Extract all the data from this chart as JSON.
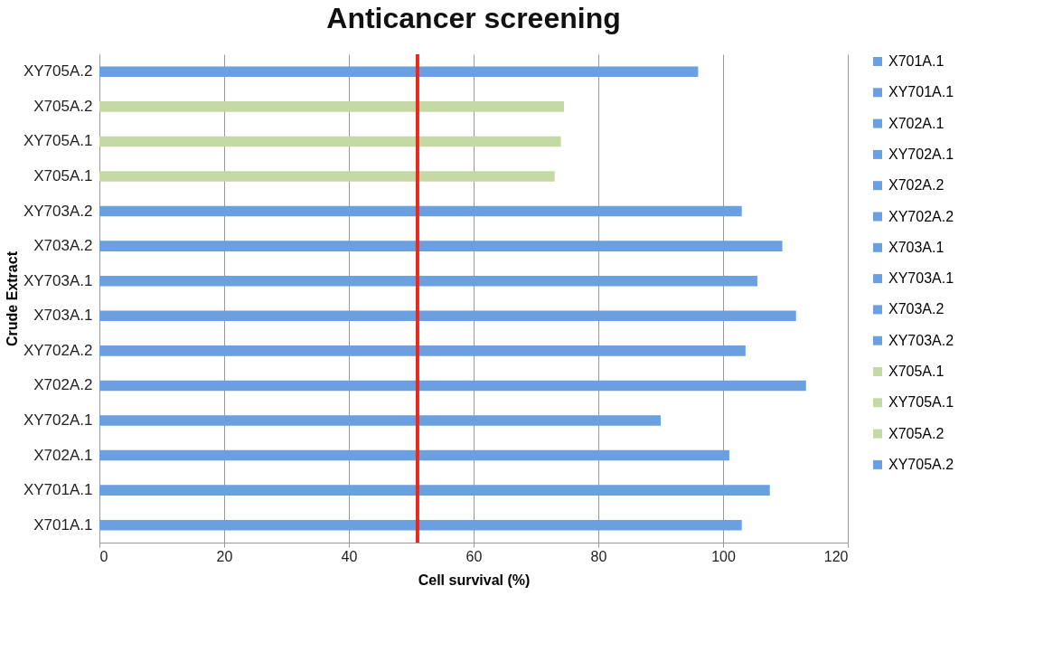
{
  "chart_data": {
    "type": "bar",
    "orientation": "horizontal",
    "title": "Anticancer screening",
    "xlabel": "Cell survival (%)",
    "ylabel": "Crude Extract",
    "categories": [
      "XY705A.2",
      "X705A.2",
      "XY705A.1",
      "X705A.1",
      "XY703A.2",
      "X703A.2",
      "XY703A.1",
      "X703A.1",
      "XY702A.2",
      "X702A.2",
      "XY702A.1",
      "X702A.1",
      "XY701A.1",
      "X701A.1"
    ],
    "series": [
      {
        "name": "X701A.1",
        "color": "#6a9fe0",
        "values": [
          null,
          null,
          null,
          null,
          null,
          null,
          null,
          null,
          null,
          null,
          null,
          null,
          null,
          103
        ]
      },
      {
        "name": "XY701A.1",
        "color": "#6a9fe0",
        "values": [
          null,
          null,
          null,
          null,
          null,
          null,
          null,
          null,
          null,
          null,
          null,
          null,
          107.5,
          null
        ]
      },
      {
        "name": "X702A.1",
        "color": "#6a9fe0",
        "values": [
          null,
          null,
          null,
          null,
          null,
          null,
          null,
          null,
          null,
          null,
          null,
          101,
          null,
          null
        ]
      },
      {
        "name": "XY702A.1",
        "color": "#6a9fe0",
        "values": [
          null,
          null,
          null,
          null,
          null,
          null,
          null,
          null,
          null,
          null,
          90,
          null,
          null,
          null
        ]
      },
      {
        "name": "X702A.2",
        "color": "#6a9fe0",
        "values": [
          null,
          null,
          null,
          null,
          null,
          null,
          null,
          null,
          null,
          113.3,
          null,
          null,
          null,
          null
        ]
      },
      {
        "name": "XY702A.2",
        "color": "#6a9fe0",
        "values": [
          null,
          null,
          null,
          null,
          null,
          null,
          null,
          null,
          103.6,
          null,
          null,
          null,
          null,
          null
        ]
      },
      {
        "name": "X703A.1",
        "color": "#6a9fe0",
        "values": [
          null,
          null,
          null,
          null,
          null,
          null,
          null,
          111.7,
          null,
          null,
          null,
          null,
          null,
          null
        ]
      },
      {
        "name": "XY703A.1",
        "color": "#6a9fe0",
        "values": [
          null,
          null,
          null,
          null,
          null,
          null,
          105.5,
          null,
          null,
          null,
          null,
          null,
          null,
          null
        ]
      },
      {
        "name": "X703A.2",
        "color": "#6a9fe0",
        "values": [
          null,
          null,
          null,
          null,
          null,
          109.5,
          null,
          null,
          null,
          null,
          null,
          null,
          null,
          null
        ]
      },
      {
        "name": "XY703A.2",
        "color": "#6a9fe0",
        "values": [
          null,
          null,
          null,
          null,
          103,
          null,
          null,
          null,
          null,
          null,
          null,
          null,
          null,
          null
        ]
      },
      {
        "name": "X705A.1",
        "color": "#c5d9a5",
        "values": [
          null,
          null,
          null,
          73,
          null,
          null,
          null,
          null,
          null,
          null,
          null,
          null,
          null,
          null
        ]
      },
      {
        "name": "XY705A.1",
        "color": "#c5d9a5",
        "values": [
          null,
          null,
          74,
          null,
          null,
          null,
          null,
          null,
          null,
          null,
          null,
          null,
          null,
          null
        ]
      },
      {
        "name": "X705A.2",
        "color": "#c5d9a5",
        "values": [
          null,
          74.5,
          null,
          null,
          null,
          null,
          null,
          null,
          null,
          null,
          null,
          null,
          null,
          null
        ]
      },
      {
        "name": "XY705A.2",
        "color": "#6a9fe0",
        "values": [
          96,
          null,
          null,
          null,
          null,
          null,
          null,
          null,
          null,
          null,
          null,
          null,
          null,
          null
        ]
      }
    ],
    "xlim": [
      0,
      120
    ],
    "xticks": [
      0,
      20,
      40,
      60,
      80,
      100,
      120
    ],
    "grid": "x",
    "legend": "right",
    "ref_lines": [
      {
        "axis": "x",
        "value": 51,
        "color": "#e8281c"
      }
    ]
  }
}
